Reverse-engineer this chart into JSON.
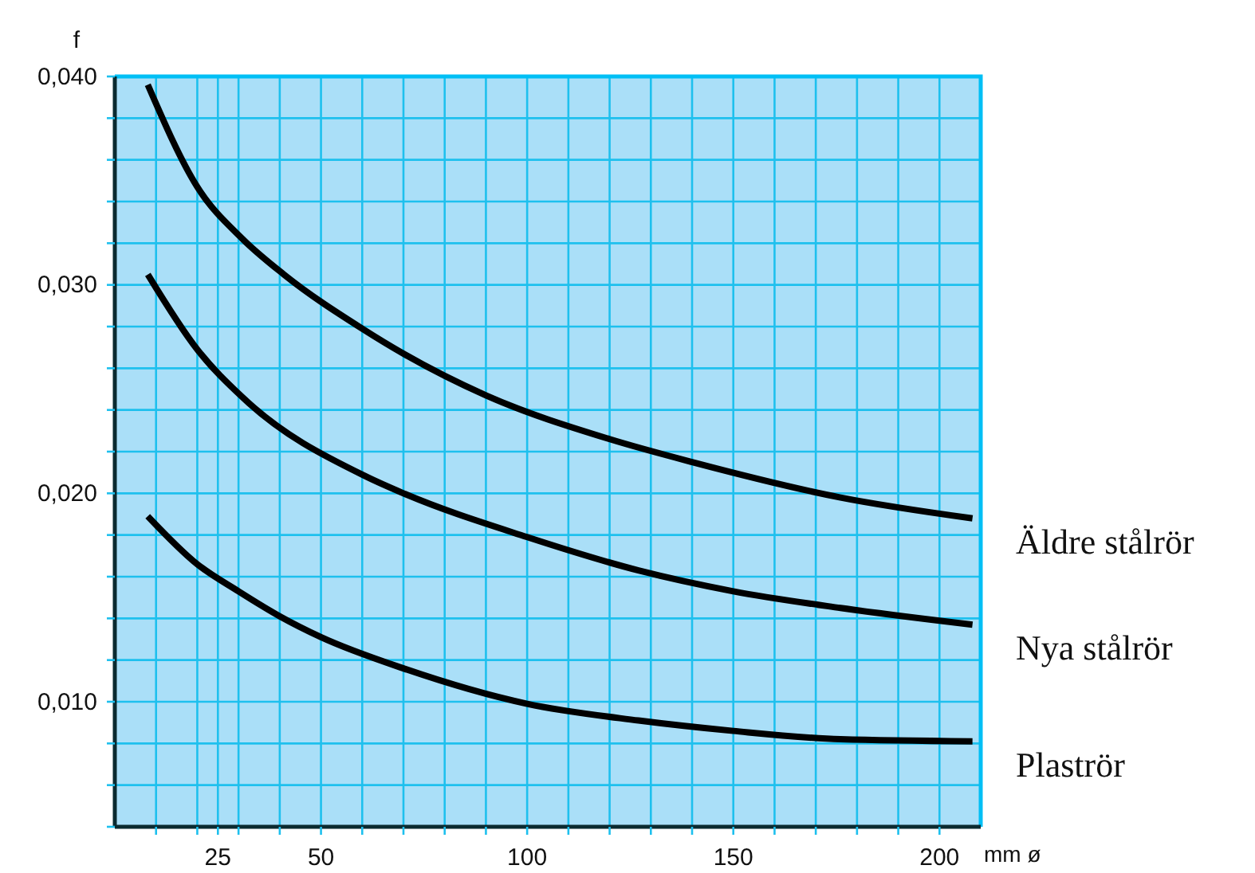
{
  "chart_data": {
    "type": "line",
    "ylabel": "f",
    "xlabel": "mm ø",
    "xlim": [
      0,
      210
    ],
    "ylim": [
      0.004,
      0.04
    ],
    "xticks": [
      {
        "value": 10,
        "label": null
      },
      {
        "value": 20,
        "label": null
      },
      25,
      {
        "value": 30,
        "label": null
      },
      {
        "value": 40,
        "label": null
      },
      50,
      {
        "value": 60,
        "label": null
      },
      {
        "value": 70,
        "label": null
      },
      {
        "value": 80,
        "label": null
      },
      {
        "value": 90,
        "label": null
      },
      100,
      {
        "value": 110,
        "label": null
      },
      {
        "value": 120,
        "label": null
      },
      {
        "value": 130,
        "label": null
      },
      {
        "value": 140,
        "label": null
      },
      150,
      {
        "value": 160,
        "label": null
      },
      {
        "value": 170,
        "label": null
      },
      {
        "value": 180,
        "label": null
      },
      {
        "value": 190,
        "label": null
      },
      200
    ],
    "yticks": [
      {
        "value": 0.004,
        "label": null
      },
      {
        "value": 0.006,
        "label": null
      },
      {
        "value": 0.008,
        "label": null
      },
      {
        "value": 0.01,
        "label": "0,010"
      },
      {
        "value": 0.012,
        "label": null
      },
      {
        "value": 0.014,
        "label": null
      },
      {
        "value": 0.016,
        "label": null
      },
      {
        "value": 0.018,
        "label": null
      },
      {
        "value": 0.02,
        "label": "0,020"
      },
      {
        "value": 0.022,
        "label": null
      },
      {
        "value": 0.024,
        "label": null
      },
      {
        "value": 0.026,
        "label": null
      },
      {
        "value": 0.028,
        "label": null
      },
      {
        "value": 0.03,
        "label": "0,030"
      },
      {
        "value": 0.032,
        "label": null
      },
      {
        "value": 0.034,
        "label": null
      },
      {
        "value": 0.036,
        "label": null
      },
      {
        "value": 0.038,
        "label": null
      },
      {
        "value": 0.04,
        "label": "0,040"
      }
    ],
    "grid": true,
    "marker": "none",
    "line_style": "solid",
    "series": [
      {
        "name": "Äldre stålrör",
        "color": "#000000",
        "x": [
          8,
          20,
          31,
          41,
          60,
          70,
          90,
          120,
          140,
          176,
          208
        ],
        "values": [
          0.0396,
          0.0347,
          0.0322,
          0.0305,
          0.0279,
          0.0267,
          0.0247,
          0.0226,
          0.0215,
          0.0198,
          0.0188
        ]
      },
      {
        "name": "Nya stålrör",
        "color": "#000000",
        "x": [
          8,
          20,
          31,
          61,
          70,
          100,
          127,
          150,
          176,
          208
        ],
        "values": [
          0.0305,
          0.0269,
          0.0246,
          0.0208,
          0.02,
          0.0179,
          0.0163,
          0.0153,
          0.0145,
          0.0137
        ]
      },
      {
        "name": "Plaströr",
        "color": "#000000",
        "x": [
          8,
          20,
          30,
          40,
          50,
          70,
          100,
          127,
          150,
          176,
          208
        ],
        "values": [
          0.0189,
          0.0166,
          0.0153,
          0.0141,
          0.0131,
          0.0116,
          0.0099,
          0.0091,
          0.0086,
          0.0082,
          0.0081
        ]
      }
    ]
  }
}
